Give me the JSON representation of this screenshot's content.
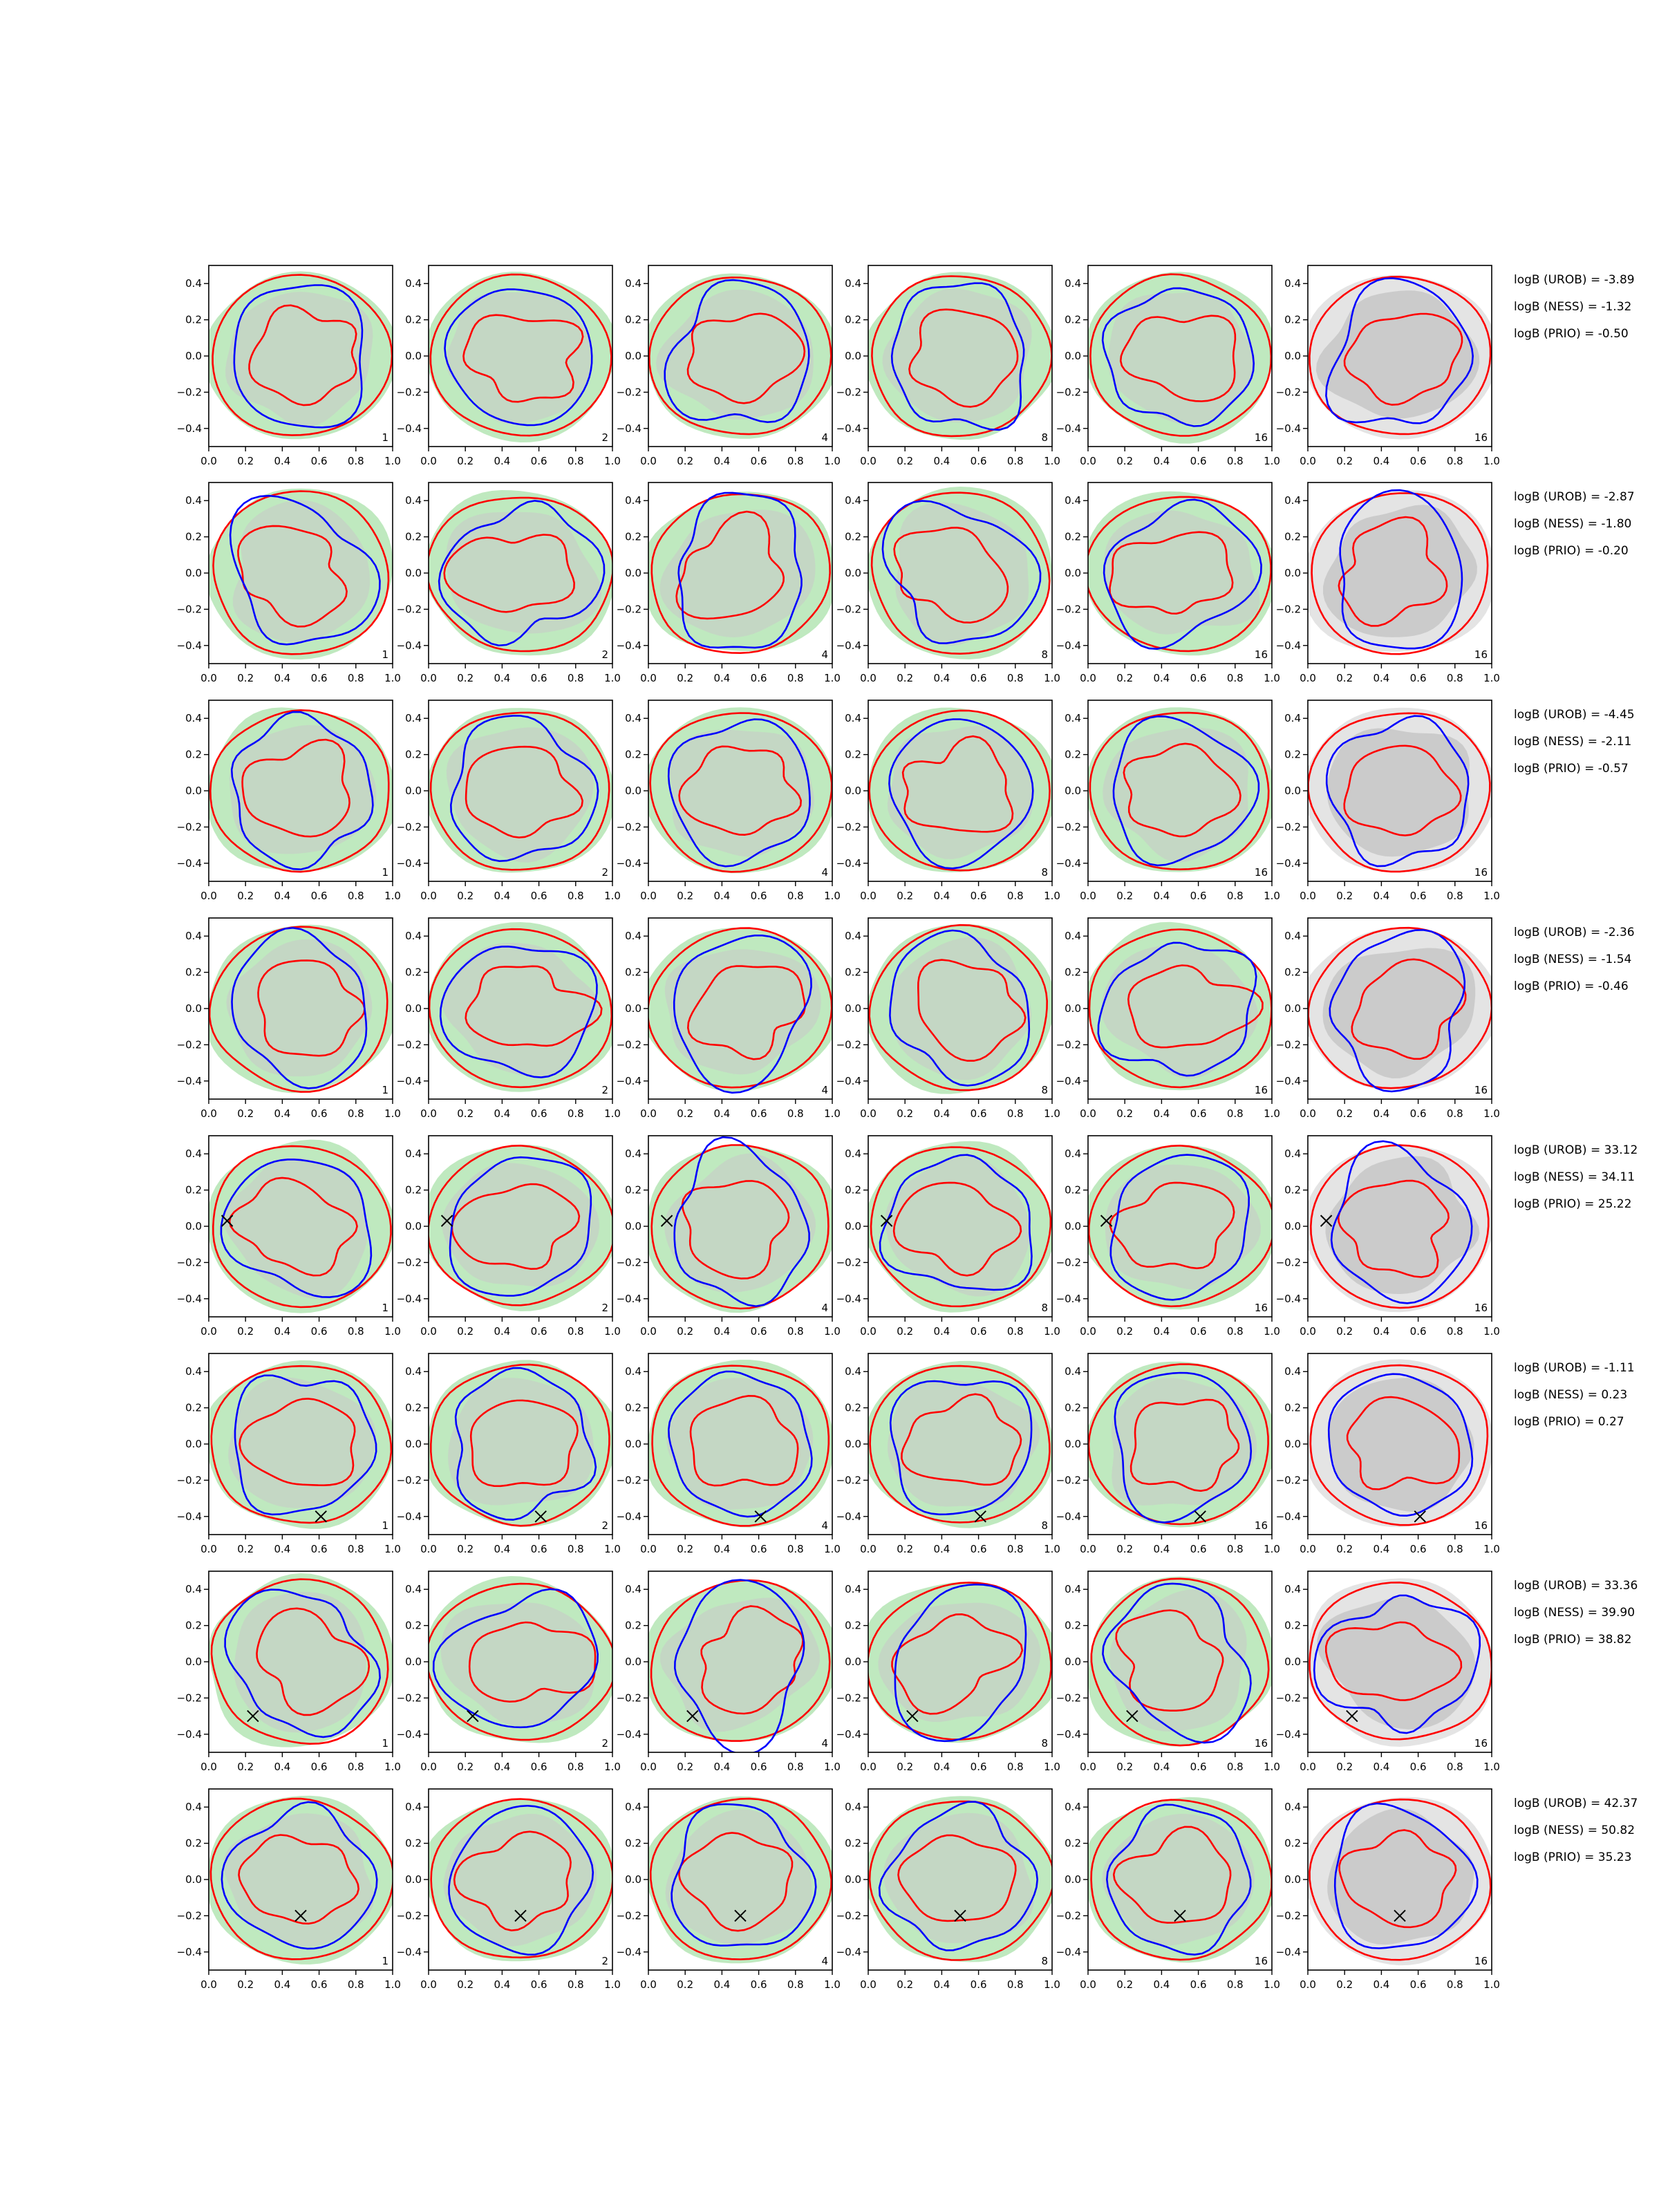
{
  "chart_data": {
    "type": "contour",
    "layout": "grid",
    "rows": 8,
    "cols": 6,
    "x_ticks": [
      "0.0",
      "0.2",
      "0.4",
      "0.6",
      "0.8",
      "1.0"
    ],
    "y_ticks": [
      "0.4",
      "0.2",
      "0.0",
      "−0.2",
      "−0.4"
    ],
    "xlim": [
      0,
      1
    ],
    "ylim": [
      -0.5,
      0.5
    ],
    "column_labels": [
      "1",
      "2",
      "4",
      "8",
      "16",
      "16"
    ],
    "colors": {
      "blue_contour": "#0000ff",
      "red_contour": "#ff0000",
      "green_fill": "#bfe9bf",
      "grey_fill": "#c8c8c8",
      "light_grey_fill": "#e4e4e4",
      "marker": "#000000"
    },
    "rows_data": [
      {
        "annotations": [
          "logB (UROB) = -3.89",
          "logB (NESS) = -1.32",
          "logB (PRIO) = -0.50"
        ],
        "marker": null
      },
      {
        "annotations": [
          "logB (UROB) = -2.87",
          "logB (NESS) = -1.80",
          "logB (PRIO) = -0.20"
        ],
        "marker": null
      },
      {
        "annotations": [
          "logB (UROB) = -4.45",
          "logB (NESS) = -2.11",
          "logB (PRIO) = -0.57"
        ],
        "marker": null
      },
      {
        "annotations": [
          "logB (UROB) = -2.36",
          "logB (NESS) = -1.54",
          "logB (PRIO) = -0.46"
        ],
        "marker": null
      },
      {
        "annotations": [
          "logB (UROB) = 33.12",
          "logB (NESS) = 34.11",
          "logB (PRIO) = 25.22"
        ],
        "marker": [
          0.1,
          0.03
        ]
      },
      {
        "annotations": [
          "logB (UROB) = -1.11",
          "logB (NESS) = 0.23",
          "logB (PRIO) = 0.27"
        ],
        "marker": [
          0.61,
          -0.4
        ]
      },
      {
        "annotations": [
          "logB (UROB) = 33.36",
          "logB (NESS) = 39.90",
          "logB (PRIO) = 38.82"
        ],
        "marker": [
          0.24,
          -0.3
        ]
      },
      {
        "annotations": [
          "logB (UROB) = 42.37",
          "logB (NESS) = 50.82",
          "logB (PRIO) = 35.23"
        ],
        "marker": [
          0.5,
          -0.2
        ]
      }
    ]
  }
}
